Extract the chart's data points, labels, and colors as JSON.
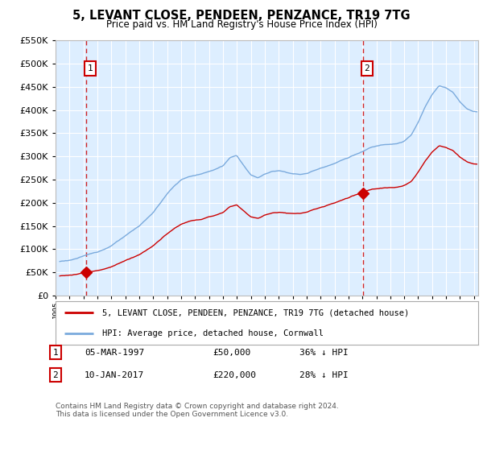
{
  "title": "5, LEVANT CLOSE, PENDEEN, PENZANCE, TR19 7TG",
  "subtitle": "Price paid vs. HM Land Registry's House Price Index (HPI)",
  "legend_line1": "5, LEVANT CLOSE, PENDEEN, PENZANCE, TR19 7TG (detached house)",
  "legend_line2": "HPI: Average price, detached house, Cornwall",
  "annotation1_date": "05-MAR-1997",
  "annotation1_price": "£50,000",
  "annotation1_hpi": "36% ↓ HPI",
  "annotation2_date": "10-JAN-2017",
  "annotation2_price": "£220,000",
  "annotation2_hpi": "28% ↓ HPI",
  "footer": "Contains HM Land Registry data © Crown copyright and database right 2024.\nThis data is licensed under the Open Government Licence v3.0.",
  "sale1_year": 1997.17,
  "sale1_price": 50000,
  "sale2_year": 2017.03,
  "sale2_price": 220000,
  "red_line_color": "#cc0000",
  "blue_line_color": "#7aaadd",
  "bg_color": "#ddeeff",
  "grid_color": "#ffffff",
  "vline_color": "#cc0000",
  "ylim": [
    0,
    550000
  ],
  "xlim_start": 1995.3,
  "xlim_end": 2025.3
}
